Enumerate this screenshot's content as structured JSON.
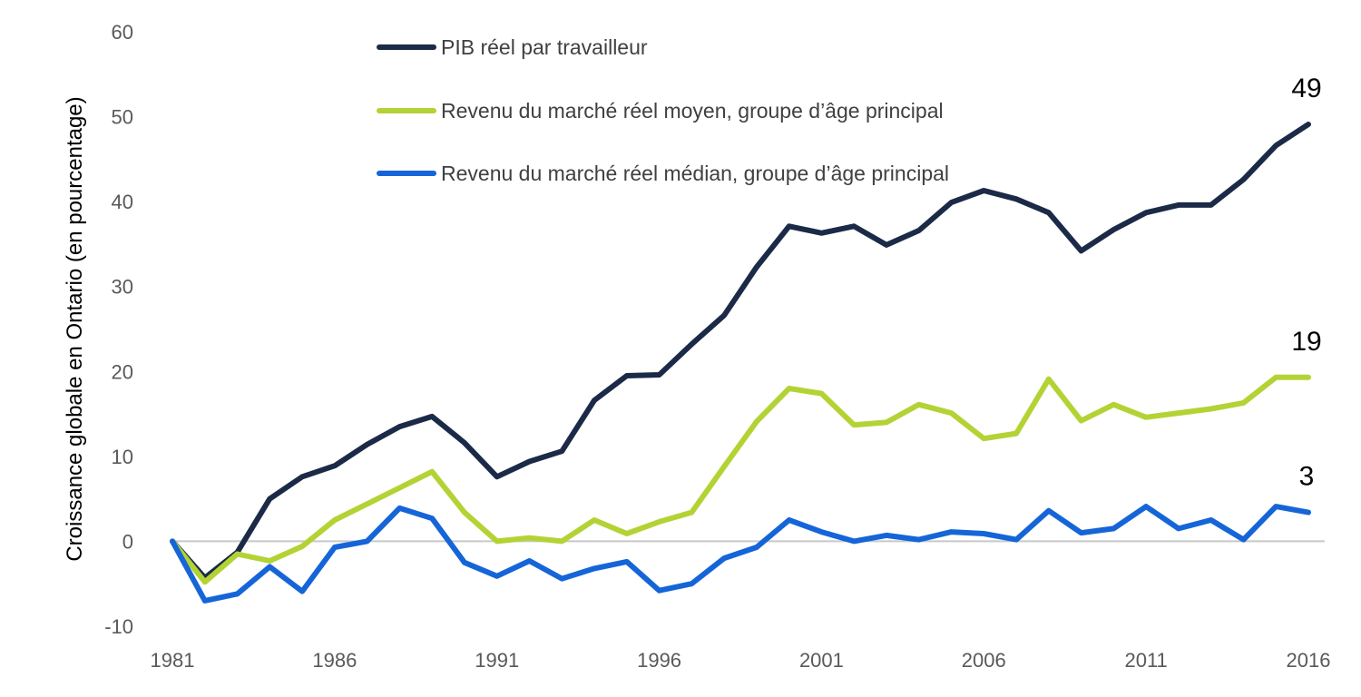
{
  "chart_data": {
    "type": "line",
    "title": "",
    "xlabel": "",
    "ylabel": "Croissance globale en Ontario (en pourcentage)",
    "ylim": [
      -10,
      60
    ],
    "yticks": [
      -10,
      0,
      10,
      20,
      30,
      40,
      50,
      60
    ],
    "ytick_labels": [
      "-10",
      "0",
      "10",
      "20",
      "30",
      "40",
      "50",
      "60"
    ],
    "xlim": [
      1981,
      2016
    ],
    "xticks": [
      1981,
      1986,
      1991,
      1996,
      2001,
      2006,
      2011,
      2016
    ],
    "xtick_labels": [
      "1981",
      "1986",
      "1991",
      "1996",
      "2001",
      "2006",
      "2011",
      "2016"
    ],
    "x": [
      1981,
      1982,
      1983,
      1984,
      1985,
      1986,
      1987,
      1988,
      1989,
      1990,
      1991,
      1992,
      1993,
      1994,
      1995,
      1996,
      1997,
      1998,
      1999,
      2000,
      2001,
      2002,
      2003,
      2004,
      2005,
      2006,
      2007,
      2008,
      2009,
      2010,
      2011,
      2012,
      2013,
      2014,
      2015,
      2016
    ],
    "grid": false,
    "zero_line": true,
    "legend_position": "top-left",
    "series": [
      {
        "name": "PIB réel par travailleur",
        "color": "#1b2a47",
        "values": [
          0,
          -4.3,
          -1.3,
          5.0,
          7.6,
          8.9,
          11.4,
          13.5,
          14.7,
          11.6,
          7.6,
          9.4,
          10.6,
          16.6,
          19.5,
          19.6,
          23.2,
          26.6,
          32.3,
          37.1,
          36.3,
          37.1,
          34.9,
          36.6,
          39.9,
          41.3,
          40.3,
          38.7,
          34.2,
          36.7,
          38.7,
          39.6,
          39.6,
          42.6,
          46.6,
          49.1
        ],
        "end_label": "49"
      },
      {
        "name": "Revenu du marché réel moyen, groupe d’âge principal",
        "color": "#b3d335",
        "values": [
          0,
          -4.8,
          -1.5,
          -2.3,
          -0.6,
          2.5,
          4.4,
          6.3,
          8.2,
          3.4,
          0.0,
          0.4,
          0.0,
          2.5,
          0.9,
          2.3,
          3.4,
          8.8,
          14.1,
          18.0,
          17.4,
          13.7,
          14.0,
          16.1,
          15.1,
          12.1,
          12.7,
          19.1,
          14.2,
          16.1,
          14.6,
          15.1,
          15.6,
          16.3,
          19.3,
          19.3
        ],
        "end_label": "19"
      },
      {
        "name": "Revenu du marché réel médian, groupe d’âge principal",
        "color": "#1565d8",
        "values": [
          0,
          -7.0,
          -6.2,
          -3.0,
          -5.9,
          -0.7,
          0.0,
          3.9,
          2.7,
          -2.5,
          -4.1,
          -2.3,
          -4.4,
          -3.2,
          -2.4,
          -5.8,
          -5.0,
          -2.0,
          -0.7,
          2.5,
          1.1,
          0.0,
          0.7,
          0.2,
          1.1,
          0.9,
          0.2,
          3.6,
          1.0,
          1.5,
          4.1,
          1.5,
          2.5,
          0.2,
          4.1,
          3.4
        ],
        "end_label": "3"
      }
    ]
  }
}
